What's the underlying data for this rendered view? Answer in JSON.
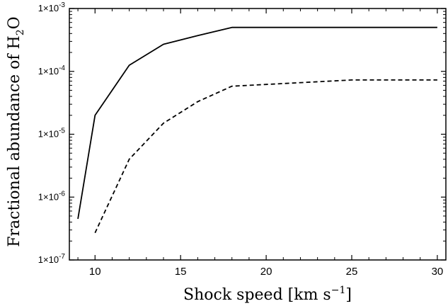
{
  "chart_data": {
    "type": "line",
    "xlabel": "Shock speed [km s",
    "xlabel_superscript": "−1",
    "xlabel_suffix": "]",
    "ylabel": "Fractional abundance of H",
    "ylabel_subscript": "2",
    "ylabel_suffix": "O",
    "xlim": [
      8.5,
      30.5
    ],
    "ylim": [
      1e-07,
      0.001
    ],
    "yscale": "log",
    "grid": false,
    "legend": "none",
    "x_ticks": [
      10,
      15,
      20,
      25,
      30
    ],
    "y_ticks": [
      {
        "value": 1e-07,
        "base": "1×10",
        "exp": "-7"
      },
      {
        "value": 1e-06,
        "base": "1×10",
        "exp": "-6"
      },
      {
        "value": 1e-05,
        "base": "1×10",
        "exp": "-5"
      },
      {
        "value": 0.0001,
        "base": "1×10",
        "exp": "-4"
      },
      {
        "value": 0.001,
        "base": "1×10",
        "exp": "-3"
      }
    ],
    "series": [
      {
        "style": "solid",
        "x": [
          9,
          10,
          12,
          14,
          16,
          18,
          20,
          25,
          30
        ],
        "y": [
          4.5e-07,
          2e-05,
          0.000125,
          0.00027,
          0.00037,
          0.0005,
          0.0005,
          0.0005,
          0.0005
        ]
      },
      {
        "style": "dashed",
        "x": [
          10,
          12,
          14,
          16,
          18,
          20,
          25,
          30
        ],
        "y": [
          2.7e-07,
          4e-06,
          1.5e-05,
          3.3e-05,
          5.8e-05,
          6.2e-05,
          7.3e-05,
          7.3e-05
        ]
      }
    ],
    "colors": {
      "line": "#000000",
      "axis": "#000000",
      "background": "#ffffff"
    }
  }
}
